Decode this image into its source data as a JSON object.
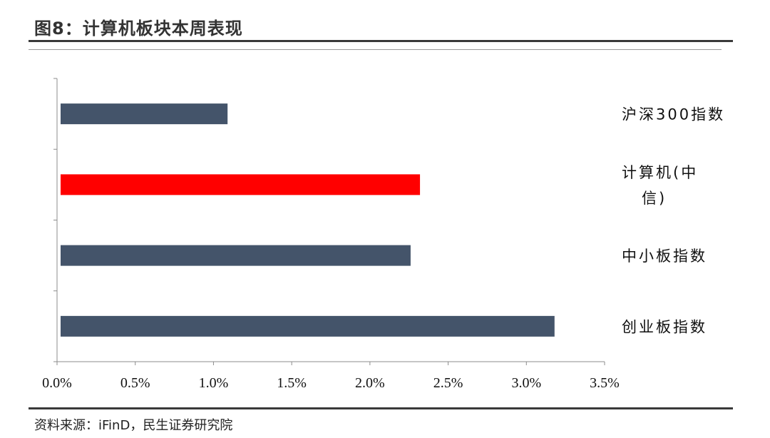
{
  "page": {
    "title": "图8：计算机板块本周表现",
    "source": "资料来源：iFinD，民生证券研究院"
  },
  "chart_data": {
    "type": "bar",
    "orientation": "horizontal",
    "categories": [
      "沪深300指数",
      "计算机(中信)",
      "中小板指数",
      "创业板指数"
    ],
    "category_label_lines": [
      [
        "沪深300指数"
      ],
      [
        "计算机(中",
        "信)"
      ],
      [
        "中小板指数"
      ],
      [
        "创业板指数"
      ]
    ],
    "values": [
      1.09,
      2.32,
      2.26,
      3.18
    ],
    "unit": "%",
    "xlim": [
      0,
      3.5
    ],
    "xticks": [
      0,
      0.5,
      1.0,
      1.5,
      2.0,
      2.5,
      3.0,
      3.5
    ],
    "xtick_labels": [
      "0.0%",
      "0.5%",
      "1.0%",
      "1.5%",
      "2.0%",
      "2.5%",
      "3.0%",
      "3.5%"
    ],
    "colors": [
      "#44546a",
      "#ff0000",
      "#44546a",
      "#44546a"
    ],
    "grid": false,
    "legend": "none"
  }
}
